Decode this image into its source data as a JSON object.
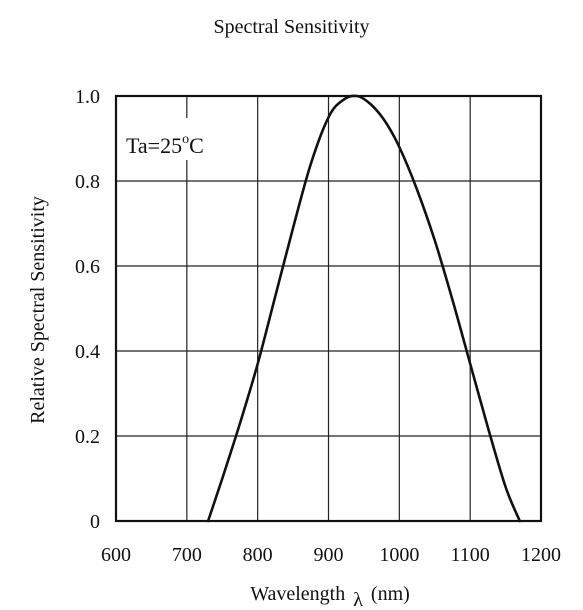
{
  "chart_data": {
    "type": "line",
    "title": "Spectral Sensitivity",
    "xlabel": "Wavelength",
    "xlabel_symbol": "λ",
    "xlabel_unit": "(nm)",
    "ylabel": "Relative Spectral Sensitivity",
    "annotation": {
      "prefix": "Ta=25",
      "superscript": "o",
      "suffix": "C"
    },
    "xlim": [
      600,
      1200
    ],
    "ylim": [
      0,
      1.0
    ],
    "x_ticks": [
      600,
      700,
      800,
      900,
      1000,
      1100,
      1200
    ],
    "x_tick_labels": [
      "600",
      "700",
      "800",
      "900",
      "1000",
      "1100",
      "1200"
    ],
    "y_ticks": [
      0,
      0.2,
      0.4,
      0.6,
      0.8,
      1.0
    ],
    "y_tick_labels": [
      "0",
      "0.2",
      "0.4",
      "0.6",
      "0.8",
      "1.0"
    ],
    "grid": true,
    "series": [
      {
        "x": [
          730,
          750,
          775,
          800,
          825,
          850,
          875,
          900,
          920,
          940,
          960,
          980,
          1000,
          1025,
          1050,
          1075,
          1100,
          1125,
          1150,
          1170
        ],
        "y": [
          0.0,
          0.1,
          0.23,
          0.37,
          0.53,
          0.69,
          0.84,
          0.95,
          0.99,
          1.0,
          0.98,
          0.94,
          0.88,
          0.78,
          0.66,
          0.52,
          0.37,
          0.22,
          0.08,
          0.0
        ]
      }
    ]
  }
}
